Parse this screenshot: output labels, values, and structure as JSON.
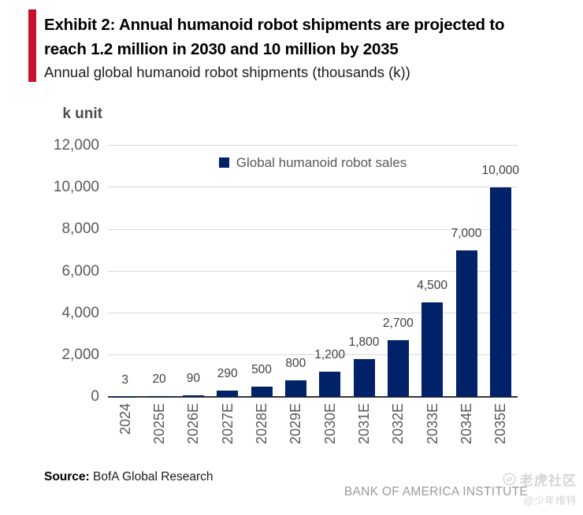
{
  "header": {
    "exhibit_title": "Exhibit 2: Annual humanoid robot shipments are projected to reach 1.2 million in 2030 and 10 million by 2035",
    "subtitle": "Annual global humanoid robot shipments (thousands (k))",
    "accent_color": "#C8102E"
  },
  "chart_data": {
    "type": "bar",
    "title": "",
    "unit_label": "k unit",
    "legend": [
      {
        "label": "Global humanoid robot sales",
        "color": "#012169"
      }
    ],
    "legend_position": "top-center",
    "categories": [
      "2024",
      "2025E",
      "2026E",
      "2027E",
      "2028E",
      "2029E",
      "2030E",
      "2031E",
      "2032E",
      "2033E",
      "2034E",
      "2035E"
    ],
    "values": [
      3,
      20,
      90,
      290,
      500,
      800,
      1200,
      1800,
      2700,
      4500,
      7000,
      10000
    ],
    "data_labels": [
      "3",
      "20",
      "90",
      "290",
      "500",
      "800",
      "1,200",
      "1,800",
      "2,700",
      "4,500",
      "7,000",
      "10,000"
    ],
    "xlabel": "",
    "ylabel": "k unit",
    "ylim": [
      0,
      12000
    ],
    "ytick_step": 2000,
    "ytick_labels": [
      "0",
      "2,000",
      "4,000",
      "6,000",
      "8,000",
      "10,000",
      "12,000"
    ],
    "grid": true,
    "bar_color": "#012169",
    "gridline_color": "#d9d9d9"
  },
  "footer": {
    "source_label": "Source:",
    "source_text": " BofA Global Research",
    "brand": "BANK OF AMERICA INSTITUTE"
  },
  "watermark": {
    "community": "老虎社区",
    "user": "@少年维特",
    "icon": "tiger-community-icon"
  }
}
